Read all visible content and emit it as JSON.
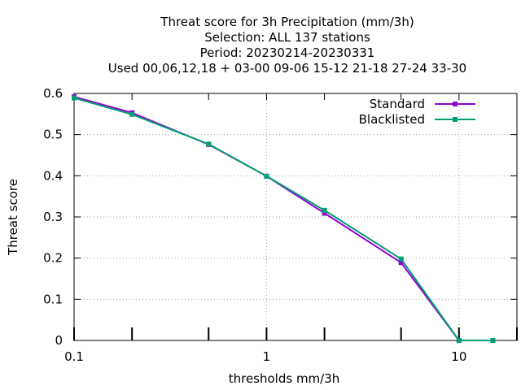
{
  "chart_data": {
    "type": "line",
    "title_lines": [
      "Threat score  for 3h Precipitation (mm/3h)",
      "Selection: ALL    137 stations",
      "Period: 20230214-20230331",
      "Used  00,06,12,18 + 03-00 09-06 15-12 21-18 27-24 33-30"
    ],
    "xlabel": "thresholds mm/3h",
    "ylabel": "Threat score",
    "x_scale": "log",
    "xlim": [
      0.1,
      20
    ],
    "ylim": [
      0,
      0.6
    ],
    "x_ticks": [
      {
        "value": 0.1,
        "label": "0.1"
      },
      {
        "value": 1,
        "label": "1"
      },
      {
        "value": 10,
        "label": "10"
      }
    ],
    "x_minor_ticks": [
      0.2,
      0.5,
      2,
      5,
      20
    ],
    "y_ticks": [
      {
        "value": 0,
        "label": "0"
      },
      {
        "value": 0.1,
        "label": "0.1"
      },
      {
        "value": 0.2,
        "label": "0.2"
      },
      {
        "value": 0.3,
        "label": "0.3"
      },
      {
        "value": 0.4,
        "label": "0.4"
      },
      {
        "value": 0.5,
        "label": "0.5"
      },
      {
        "value": 0.6,
        "label": "0.6"
      }
    ],
    "grid": true,
    "legend_position": "top-right",
    "series": [
      {
        "name": "Standard",
        "color": "#9400d3",
        "marker": "square",
        "x": [
          0.1,
          0.2,
          0.5,
          1,
          2,
          5,
          10,
          15
        ],
        "y": [
          0.592,
          0.553,
          0.476,
          0.399,
          0.309,
          0.189,
          0.0,
          0.0
        ]
      },
      {
        "name": "Blacklisted",
        "color": "#009e73",
        "marker": "square",
        "x": [
          0.1,
          0.2,
          0.5,
          1,
          2,
          5,
          10,
          15
        ],
        "y": [
          0.589,
          0.549,
          0.477,
          0.399,
          0.316,
          0.198,
          0.0,
          0.0
        ]
      }
    ]
  }
}
